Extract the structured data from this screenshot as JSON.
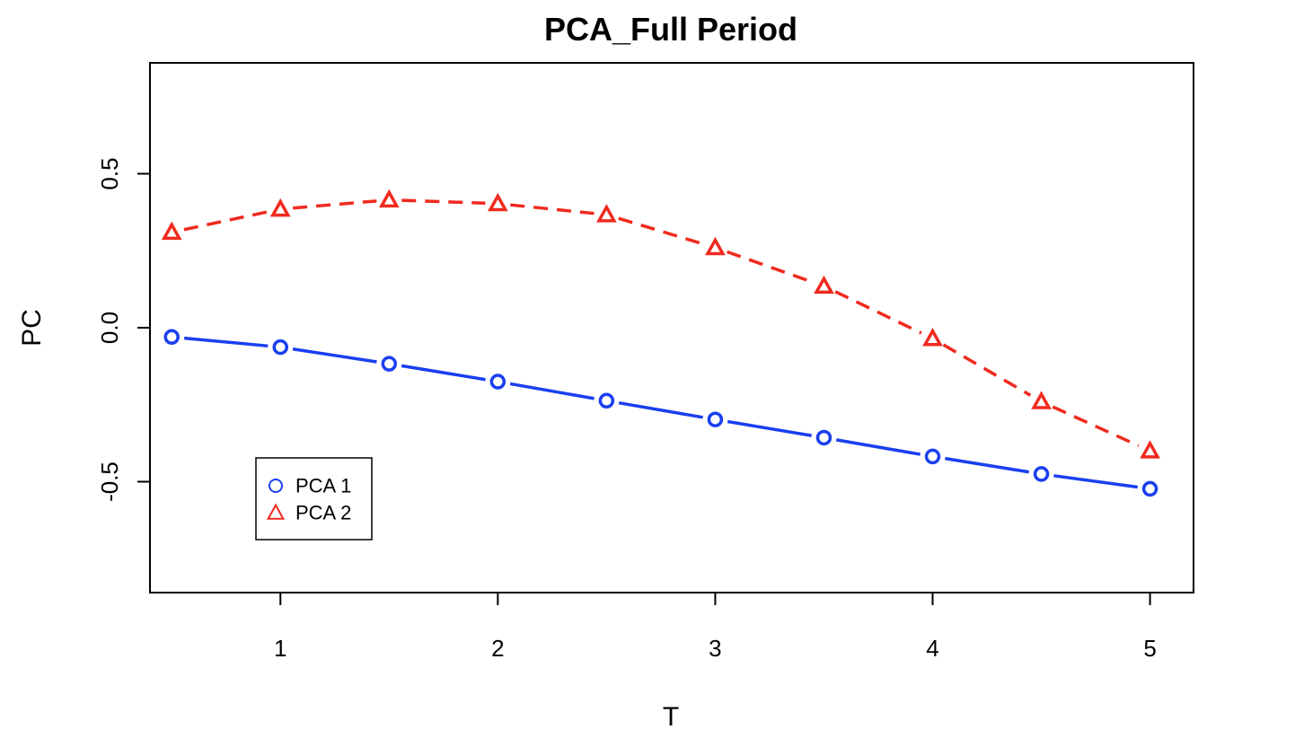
{
  "chart_data": {
    "type": "line",
    "title": "PCA_Full Period",
    "xlabel": "T",
    "ylabel": "PC",
    "xlim": [
      0.4,
      5.2
    ],
    "ylim": [
      -0.86,
      0.86
    ],
    "x_ticks": [
      1,
      2,
      3,
      4,
      5
    ],
    "x_tick_labels": [
      "1",
      "2",
      "3",
      "4",
      "5"
    ],
    "y_ticks": [
      -0.5,
      0.0,
      0.5
    ],
    "y_tick_labels": [
      "-0.5",
      "0.0",
      "0.5"
    ],
    "grid": false,
    "legend_position": "bottom-left",
    "x": [
      0.5,
      1.0,
      1.5,
      2.0,
      2.5,
      3.0,
      3.5,
      4.0,
      4.5,
      5.0
    ],
    "series": [
      {
        "name": "PCA 1",
        "color": "#1a3ff0",
        "marker": "circle",
        "line_style": "solid",
        "values": [
          -0.03,
          -0.063,
          -0.117,
          -0.175,
          -0.237,
          -0.298,
          -0.357,
          -0.418,
          -0.475,
          -0.523
        ]
      },
      {
        "name": "PCA 2",
        "color": "#f02a1e",
        "marker": "triangle",
        "line_style": "dashed",
        "values": [
          0.31,
          0.385,
          0.415,
          0.403,
          0.367,
          0.26,
          0.135,
          -0.035,
          -0.24,
          -0.4
        ]
      }
    ]
  }
}
